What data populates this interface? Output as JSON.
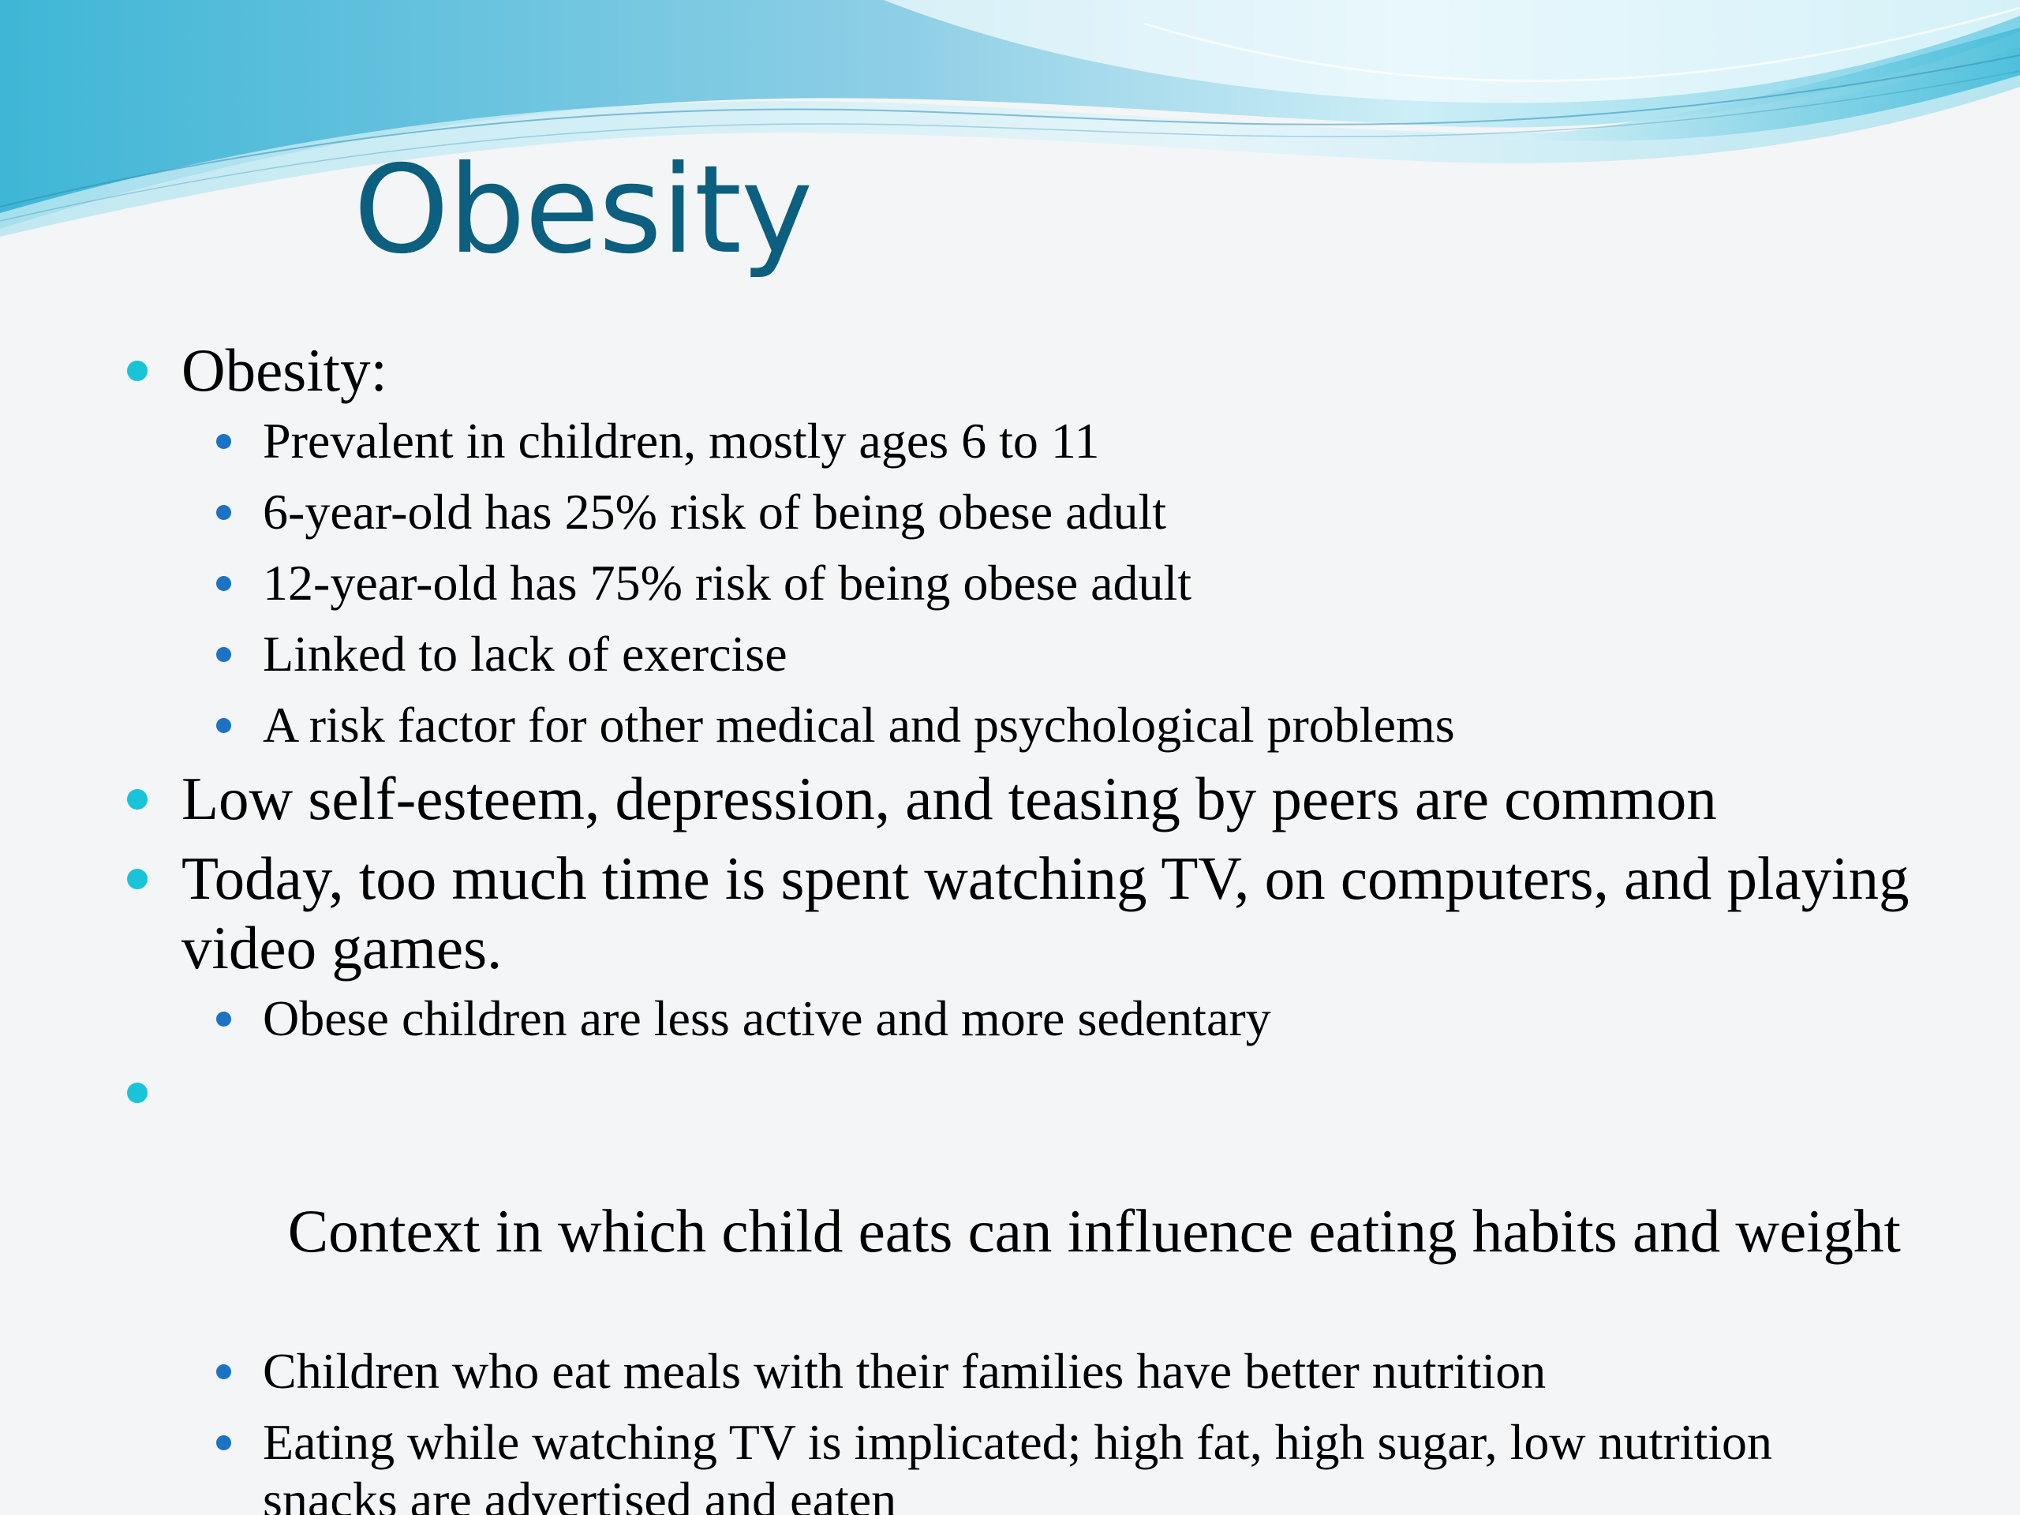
{
  "slide": {
    "title": "Obesity",
    "colors": {
      "title": "#0c5f7e",
      "level1_bullet": "#19c4d8",
      "level2_bullet": "#1c72c4",
      "wave_light": "#bde8f3",
      "wave_mid": "#5cc6de",
      "wave_dark": "#2a9cc4"
    },
    "bullets": {
      "b1": {
        "text": "Obesity:",
        "subs": [
          "Prevalent in children, mostly ages 6 to 11",
          "6-year-old has 25% risk of being obese adult",
          "12-year-old has 75% risk of being obese adult",
          "Linked to lack of exercise",
          "A risk factor for other medical and psychological problems"
        ]
      },
      "b2": {
        "text": "Low self-esteem, depression, and teasing by peers are common"
      },
      "b3": {
        "text": "Today, too much time is spent watching TV, on computers, and playing video games.",
        "subs": [
          "Obese children are less active and more sedentary"
        ]
      },
      "b4": {
        "text": " Context in which child eats can influence eating habits and weight",
        "subs": [
          "Children who eat meals with their families have better nutrition",
          "Eating while watching TV is implicated; high fat, high sugar, low nutrition snacks are advertised and eaten"
        ]
      }
    }
  }
}
